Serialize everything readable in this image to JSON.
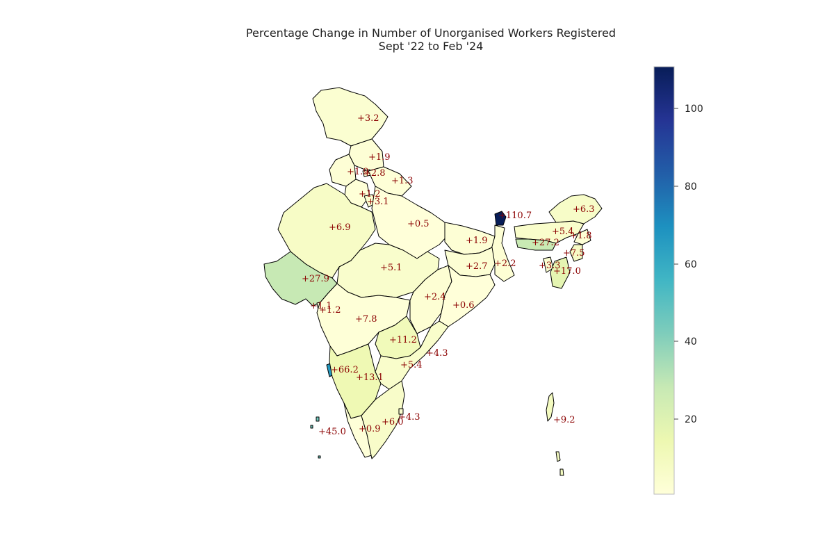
{
  "title": {
    "line1": "Percentage Change in Number of Unorganised Workers Registered",
    "line2": "Sept '22 to Feb '24"
  },
  "colorbar": {
    "min": 0.5,
    "max": 110.7,
    "ticks": [
      "20",
      "40",
      "60",
      "80",
      "100"
    ],
    "colormap": "YlGnBu",
    "colors": [
      "#ffffd9",
      "#edf8b1",
      "#c7e9b4",
      "#7fcdbb",
      "#41b6c4",
      "#1d91c0",
      "#225ea8",
      "#253494",
      "#081d58"
    ]
  },
  "labels": [
    {
      "v": 3.2,
      "text": "+3.2"
    },
    {
      "v": 1.9,
      "text": "+1.9"
    },
    {
      "v": 1.9,
      "text": "+1.9"
    },
    {
      "v": 2.8,
      "text": "+2.8"
    },
    {
      "v": 1.3,
      "text": "+1.3"
    },
    {
      "v": 1.2,
      "text": "+1.2"
    },
    {
      "v": 3.1,
      "text": "+3.1"
    },
    {
      "v": 6.9,
      "text": "+6.9"
    },
    {
      "v": 0.5,
      "text": "+0.5"
    },
    {
      "v": 1.9,
      "text": "+1.9"
    },
    {
      "v": 110.7,
      "text": "+110.7"
    },
    {
      "v": 6.3,
      "text": "+6.3"
    },
    {
      "v": 5.4,
      "text": "+5.4"
    },
    {
      "v": 1.8,
      "text": "+1.8"
    },
    {
      "v": 27.2,
      "text": "+27.2"
    },
    {
      "v": 7.5,
      "text": "+7.5"
    },
    {
      "v": 3.3,
      "text": "+3.3"
    },
    {
      "v": 17.0,
      "text": "+17.0"
    },
    {
      "v": 2.2,
      "text": "+2.2"
    },
    {
      "v": 2.7,
      "text": "+2.7"
    },
    {
      "v": 5.1,
      "text": "+5.1"
    },
    {
      "v": 27.9,
      "text": "+27.9"
    },
    {
      "v": 1.1,
      "text": "+1.1"
    },
    {
      "v": 1.2,
      "text": "+1.2"
    },
    {
      "v": 7.8,
      "text": "+7.8"
    },
    {
      "v": 2.4,
      "text": "+2.4"
    },
    {
      "v": 0.6,
      "text": "+0.6"
    },
    {
      "v": 11.2,
      "text": "+11.2"
    },
    {
      "v": 4.3,
      "text": "+4.3"
    },
    {
      "v": 5.4,
      "text": "+5.4"
    },
    {
      "v": 66.2,
      "text": "+66.2"
    },
    {
      "v": 13.1,
      "text": "+13.1"
    },
    {
      "v": 4.3,
      "text": "+4.3"
    },
    {
      "v": 6.0,
      "text": "+6.0"
    },
    {
      "v": 0.9,
      "text": "+0.9"
    },
    {
      "v": 45.0,
      "text": "+45.0"
    },
    {
      "v": 9.2,
      "text": "+9.2"
    }
  ]
}
